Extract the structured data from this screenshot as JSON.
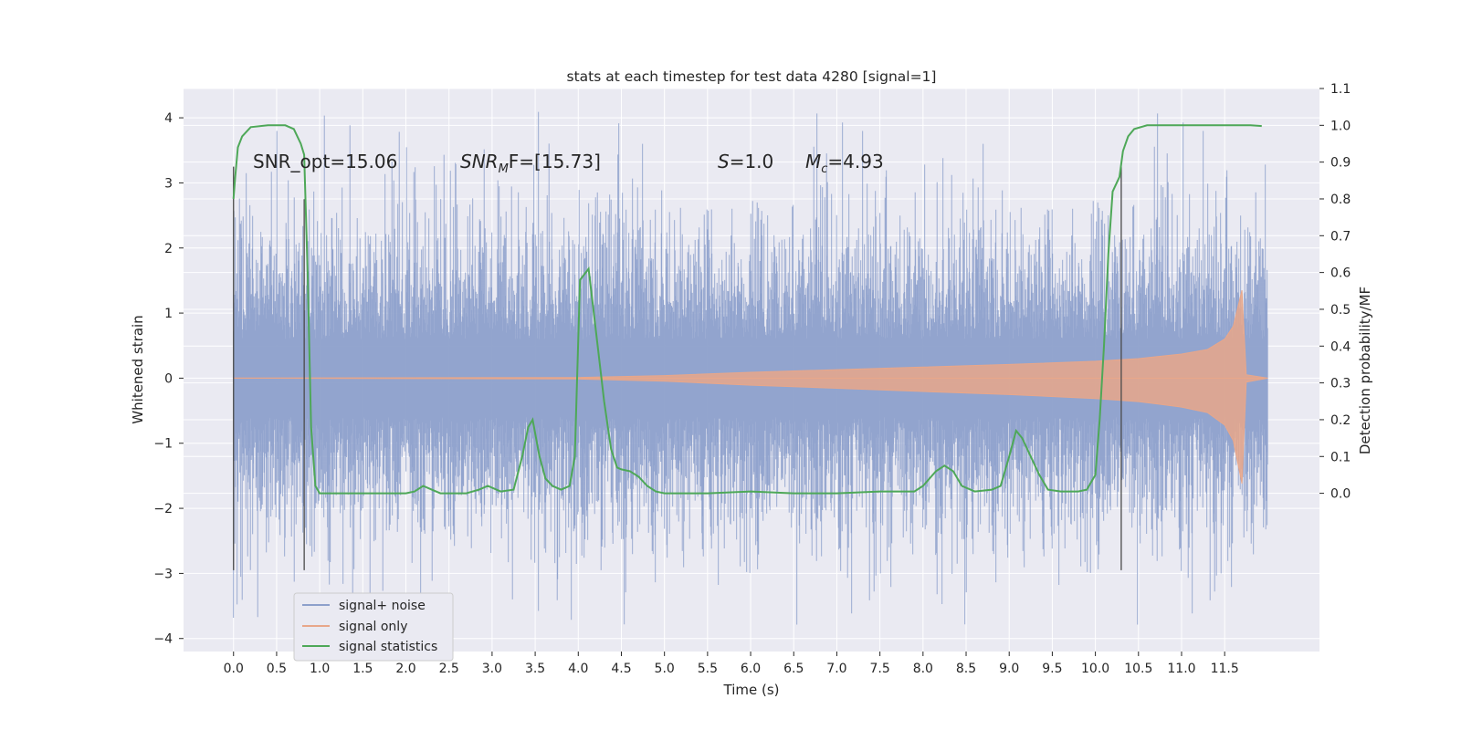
{
  "chart_data": {
    "type": "line",
    "title": "stats at each timestep for test data 4280 [signal=1]",
    "xlabel": "Time (s)",
    "ylabel": "Whitened strain",
    "ylabel_right": "Detection probability/MF",
    "xlim": [
      -0.58,
      12.6
    ],
    "ylim": [
      -4.2,
      4.45
    ],
    "ylim_right": [
      -0.43,
      1.1
    ],
    "x_ticks": [
      "0.0",
      "0.5",
      "1.0",
      "1.5",
      "2.0",
      "2.5",
      "3.0",
      "3.5",
      "4.0",
      "4.5",
      "5.0",
      "5.5",
      "6.0",
      "6.5",
      "7.0",
      "7.5",
      "8.0",
      "8.5",
      "9.0",
      "9.5",
      "10.0",
      "10.5",
      "11.0",
      "11.5"
    ],
    "y_ticks": [
      "4",
      "3",
      "2",
      "1",
      "0",
      "−1",
      "−2",
      "−3",
      "−4"
    ],
    "y_right_ticks": [
      "1.1",
      "1.0",
      "0.9",
      "0.8",
      "0.7",
      "0.6",
      "0.5",
      "0.4",
      "0.3",
      "0.2",
      "0.1",
      "0.0"
    ],
    "grid": true,
    "legend_position": "lower-left",
    "annotations": {
      "snr_opt": "SNR_opt=15.06",
      "snr_mf_sym": "SNR",
      "snr_mf_sub": "M",
      "snr_mf_rest": "F=[15.73]",
      "s_sym": "S",
      "s_val": "=1.0",
      "mc_sym": "M",
      "mc_sub": "c",
      "mc_val": "=4.93"
    },
    "window_markers_x": [
      0.0,
      0.82,
      10.3
    ],
    "series": [
      {
        "name": "signal+ noise",
        "color": "#8da0cb",
        "type": "noise",
        "x_range": [
          0.0,
          12.0
        ],
        "band_sigma": 1.0,
        "peak_range": [
          -3.8,
          4.1
        ]
      },
      {
        "name": "signal only",
        "color": "#e8a78a",
        "type": "chirp",
        "x_range": [
          0.0,
          12.0
        ],
        "envelope": [
          [
            0.0,
            0.0
          ],
          [
            4.0,
            0.01
          ],
          [
            5.0,
            0.04
          ],
          [
            6.0,
            0.09
          ],
          [
            7.0,
            0.13
          ],
          [
            8.0,
            0.17
          ],
          [
            9.0,
            0.21
          ],
          [
            10.0,
            0.26
          ],
          [
            10.5,
            0.3
          ],
          [
            11.0,
            0.37
          ],
          [
            11.3,
            0.44
          ],
          [
            11.5,
            0.6
          ],
          [
            11.6,
            0.8
          ],
          [
            11.7,
            1.35
          ],
          [
            11.75,
            0.05
          ],
          [
            12.0,
            0.0
          ]
        ]
      },
      {
        "name": "signal statistics",
        "color": "#4ea858",
        "type": "line",
        "axis": "right",
        "points": [
          [
            0.0,
            0.8
          ],
          [
            0.02,
            0.86
          ],
          [
            0.05,
            0.94
          ],
          [
            0.1,
            0.97
          ],
          [
            0.2,
            0.995
          ],
          [
            0.4,
            1.0
          ],
          [
            0.6,
            1.0
          ],
          [
            0.7,
            0.99
          ],
          [
            0.78,
            0.95
          ],
          [
            0.82,
            0.92
          ],
          [
            0.86,
            0.6
          ],
          [
            0.9,
            0.18
          ],
          [
            0.95,
            0.02
          ],
          [
            1.0,
            0.0
          ],
          [
            1.2,
            0.0
          ],
          [
            1.5,
            0.0
          ],
          [
            2.0,
            0.0
          ],
          [
            2.1,
            0.005
          ],
          [
            2.2,
            0.02
          ],
          [
            2.3,
            0.01
          ],
          [
            2.4,
            0.0
          ],
          [
            2.7,
            0.0
          ],
          [
            2.85,
            0.01
          ],
          [
            2.95,
            0.02
          ],
          [
            3.1,
            0.005
          ],
          [
            3.25,
            0.01
          ],
          [
            3.35,
            0.1
          ],
          [
            3.42,
            0.18
          ],
          [
            3.47,
            0.2
          ],
          [
            3.55,
            0.1
          ],
          [
            3.62,
            0.04
          ],
          [
            3.7,
            0.02
          ],
          [
            3.8,
            0.01
          ],
          [
            3.9,
            0.02
          ],
          [
            3.96,
            0.1
          ],
          [
            4.02,
            0.58
          ],
          [
            4.12,
            0.61
          ],
          [
            4.2,
            0.45
          ],
          [
            4.3,
            0.25
          ],
          [
            4.38,
            0.12
          ],
          [
            4.45,
            0.07
          ],
          [
            4.5,
            0.065
          ],
          [
            4.6,
            0.06
          ],
          [
            4.7,
            0.045
          ],
          [
            4.8,
            0.02
          ],
          [
            4.9,
            0.005
          ],
          [
            5.0,
            0.0
          ],
          [
            5.5,
            0.0
          ],
          [
            6.0,
            0.005
          ],
          [
            6.5,
            0.0
          ],
          [
            7.0,
            0.0
          ],
          [
            7.5,
            0.005
          ],
          [
            7.9,
            0.005
          ],
          [
            8.0,
            0.02
          ],
          [
            8.15,
            0.06
          ],
          [
            8.25,
            0.075
          ],
          [
            8.35,
            0.06
          ],
          [
            8.45,
            0.02
          ],
          [
            8.6,
            0.005
          ],
          [
            8.8,
            0.01
          ],
          [
            8.9,
            0.02
          ],
          [
            9.0,
            0.1
          ],
          [
            9.08,
            0.17
          ],
          [
            9.15,
            0.15
          ],
          [
            9.25,
            0.1
          ],
          [
            9.35,
            0.05
          ],
          [
            9.45,
            0.01
          ],
          [
            9.6,
            0.005
          ],
          [
            9.8,
            0.005
          ],
          [
            9.9,
            0.01
          ],
          [
            10.0,
            0.05
          ],
          [
            10.05,
            0.2
          ],
          [
            10.1,
            0.4
          ],
          [
            10.15,
            0.65
          ],
          [
            10.2,
            0.82
          ],
          [
            10.28,
            0.86
          ],
          [
            10.32,
            0.93
          ],
          [
            10.38,
            0.97
          ],
          [
            10.45,
            0.99
          ],
          [
            10.6,
            1.0
          ],
          [
            11.0,
            1.0
          ],
          [
            11.5,
            1.0
          ],
          [
            11.8,
            1.0
          ],
          [
            11.93,
            0.998
          ]
        ]
      }
    ]
  }
}
